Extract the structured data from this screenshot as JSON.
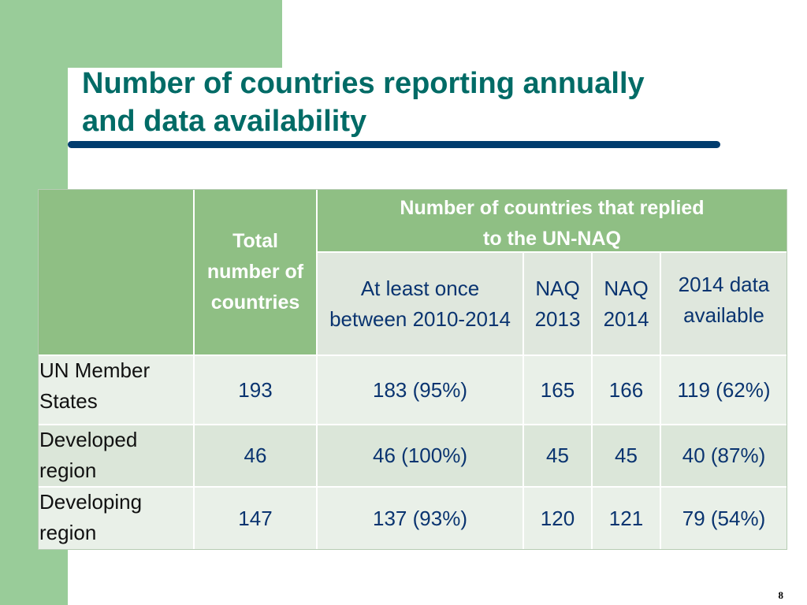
{
  "slide": {
    "title_line1": "Number of countries reporting annually",
    "title_line2": "and data availability",
    "page_number": "8"
  },
  "table": {
    "headers": {
      "total": [
        "Total",
        "number of",
        "countries"
      ],
      "group": [
        "Number of countries that replied",
        "to the UN-NAQ"
      ],
      "at_least_once": [
        "At least once",
        "between 2010-2014"
      ],
      "naq2013": [
        "NAQ",
        "2013"
      ],
      "naq2014": [
        "NAQ",
        "2014"
      ],
      "available2014": [
        "2014 data",
        "available"
      ]
    },
    "rows": [
      {
        "label": [
          "UN Member",
          "States"
        ],
        "total": "193",
        "at_least_once": "183 (95%)",
        "naq2013": "165",
        "naq2014": "166",
        "available2014": "119 (62%)"
      },
      {
        "label": [
          "Developed",
          "region"
        ],
        "total": "46",
        "at_least_once": "46 (100%)",
        "naq2013": "45",
        "naq2014": "45",
        "available2014": "40 (87%)"
      },
      {
        "label": [
          "Developing",
          "region"
        ],
        "total": "147",
        "at_least_once": "137 (93%)",
        "naq2013": "120",
        "naq2014": "121",
        "available2014": "79 (54%)"
      }
    ]
  },
  "colors": {
    "accent_green": "#99cc99",
    "header_green": "#8fbf84",
    "title_teal": "#006b66",
    "rule_navy": "#003c6e"
  }
}
